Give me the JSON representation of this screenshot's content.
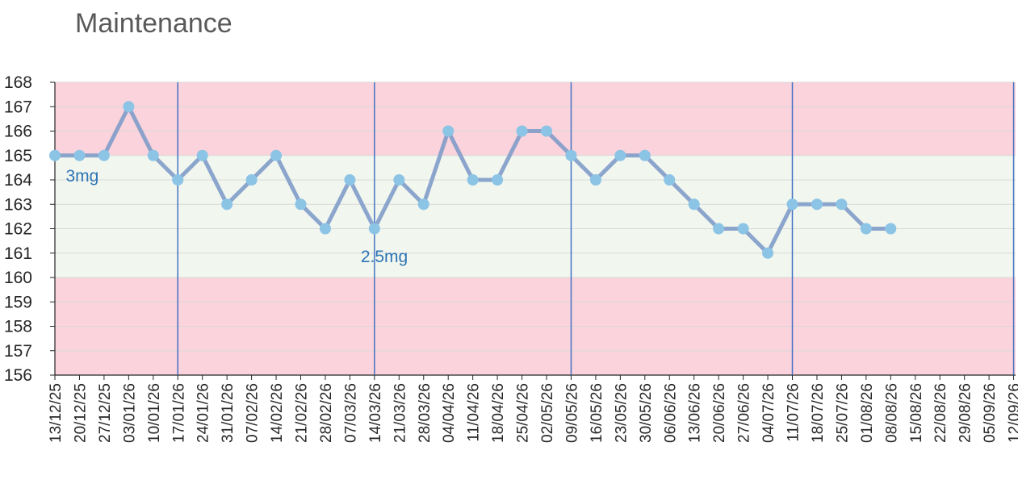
{
  "chart_data": {
    "type": "line",
    "title": "Maintenance",
    "xlabel": "",
    "ylabel": "",
    "ylim": [
      156,
      168
    ],
    "yticks": [
      156,
      157,
      158,
      159,
      160,
      161,
      162,
      163,
      164,
      165,
      166,
      167,
      168
    ],
    "categories": [
      "13/12/25",
      "20/12/25",
      "27/12/25",
      "03/01/26",
      "10/01/26",
      "17/01/26",
      "24/01/26",
      "31/01/26",
      "07/02/26",
      "14/02/26",
      "21/02/26",
      "28/02/26",
      "07/03/26",
      "14/03/26",
      "21/03/26",
      "28/03/26",
      "04/04/26",
      "11/04/26",
      "18/04/26",
      "25/04/26",
      "02/05/26",
      "09/05/26",
      "16/05/26",
      "23/05/26",
      "30/05/26",
      "06/06/26",
      "13/06/26",
      "20/06/26",
      "27/06/26",
      "04/07/26",
      "11/07/26",
      "18/07/26",
      "25/07/26",
      "01/08/26",
      "08/08/26",
      "15/08/26",
      "22/08/26",
      "29/08/26",
      "05/09/26",
      "12/09/26"
    ],
    "series": [
      {
        "values": [
          165,
          165,
          165,
          167,
          165,
          164,
          165,
          163,
          164,
          165,
          163,
          162,
          164,
          162,
          164,
          163,
          166,
          164,
          164,
          166,
          166,
          165,
          164,
          165,
          165,
          164,
          163,
          162,
          162,
          161,
          163,
          163,
          163,
          162,
          162,
          null,
          null,
          null,
          null,
          null
        ],
        "color": "#7f9cc9",
        "marker_color": "#8cc4e6"
      }
    ],
    "bands": [
      {
        "from": 165,
        "to": 168,
        "color": "#fad3dc"
      },
      {
        "from": 160,
        "to": 165,
        "color": "#f1f6ee"
      },
      {
        "from": 156,
        "to": 160,
        "color": "#fad3dc"
      }
    ],
    "vertical_markers": [
      "17/01/26",
      "14/03/26",
      "09/05/26",
      "11/07/26",
      "12/09/26"
    ],
    "marker_line_color": "#4472c4",
    "annotations": [
      {
        "text": "3mg",
        "at_category": "20/12/25",
        "y": 164.2
      },
      {
        "text": "2.5mg",
        "at_category": "14/03/26",
        "y": 160.9
      }
    ],
    "grid": true,
    "legend": "none"
  }
}
